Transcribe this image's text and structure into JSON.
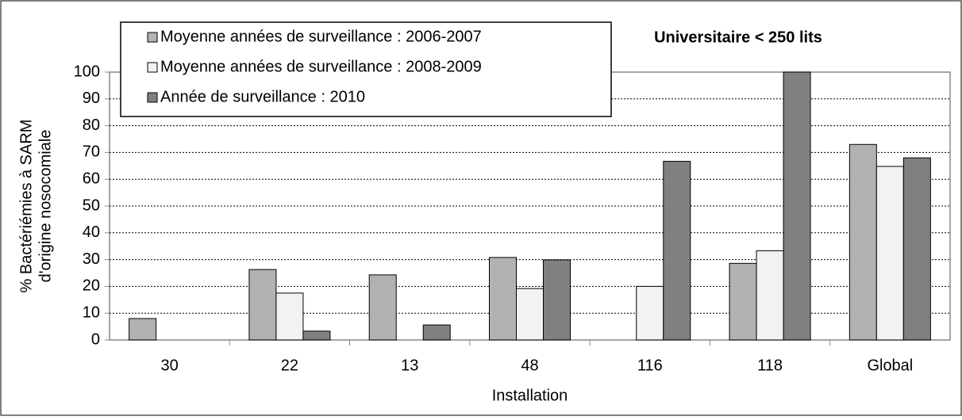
{
  "chart_data": {
    "type": "bar",
    "title": "Universitaire < 250 lits",
    "x_label": "Installation",
    "y_label": [
      "% Bactériémies à SARM",
      "d'origine nosocomiale"
    ],
    "categories": [
      "30",
      "22",
      "13",
      "48",
      "116",
      "118",
      "Global"
    ],
    "series": [
      {
        "name": "Moyenne années de surveillance : 2006-2007",
        "color": "#b2b2b2",
        "values": [
          8,
          26.3,
          24.3,
          30.8,
          0,
          28.6,
          73
        ]
      },
      {
        "name": "Moyenne années de surveillance : 2008-2009",
        "color": "#f2f2f2",
        "values": [
          0,
          17.5,
          0,
          19.2,
          20,
          33.3,
          64.8
        ]
      },
      {
        "name": "Année de surveillance : 2010",
        "color": "#808080",
        "values": [
          0,
          3.3,
          5.6,
          29.9,
          66.7,
          100,
          68
        ]
      }
    ],
    "ylim": [
      0,
      100
    ],
    "yticks": [
      0,
      10,
      20,
      30,
      40,
      50,
      60,
      70,
      80,
      90,
      100
    ],
    "grid": true
  }
}
